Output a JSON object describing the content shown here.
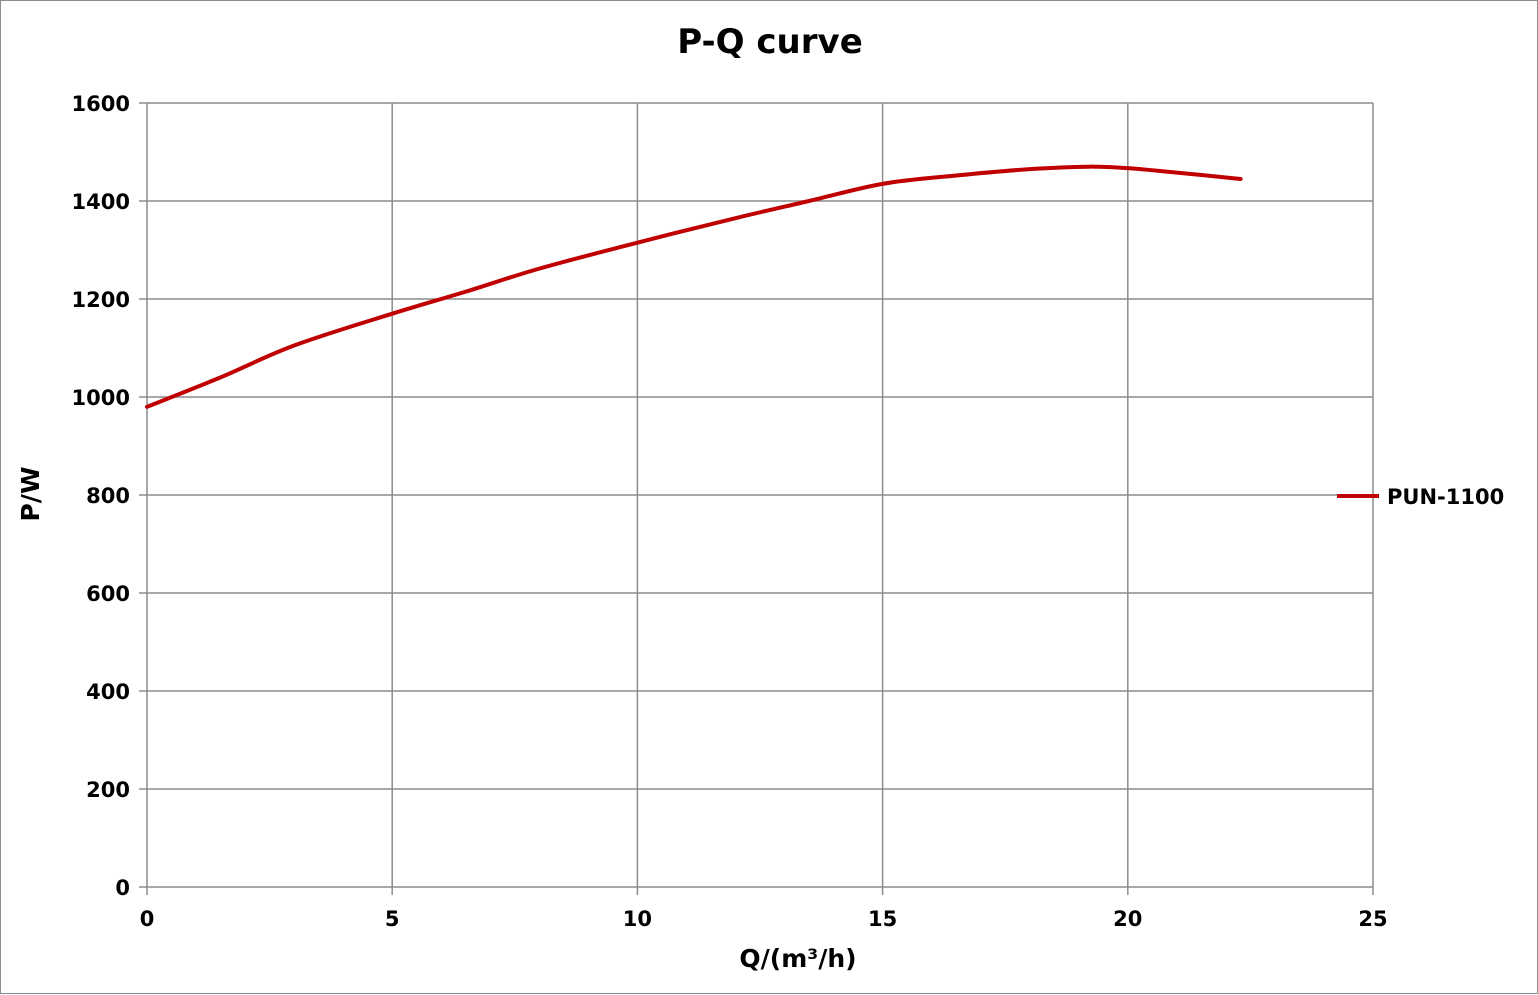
{
  "chart_data": {
    "type": "line",
    "title": "P-Q  curve",
    "xlabel": "Q/(m³/h)",
    "ylabel": "P/W",
    "xlim": [
      0,
      25
    ],
    "ylim": [
      0,
      1600
    ],
    "x_ticks": [
      "0",
      "5",
      "10",
      "15",
      "20",
      "25"
    ],
    "y_ticks": [
      "0",
      "200",
      "400",
      "600",
      "800",
      "1000",
      "1200",
      "1400",
      "1600"
    ],
    "grid": true,
    "legend_position": "right",
    "series": [
      {
        "name": "PUN-1100",
        "color": "#c00000",
        "x": [
          0,
          1.5,
          3,
          5,
          6.5,
          8,
          10,
          12,
          13.5,
          15,
          16.5,
          18,
          19.2,
          20,
          21,
          22.3
        ],
        "y": [
          980,
          1040,
          1105,
          1170,
          1215,
          1262,
          1315,
          1365,
          1400,
          1435,
          1452,
          1465,
          1470,
          1467,
          1458,
          1445
        ]
      }
    ]
  }
}
